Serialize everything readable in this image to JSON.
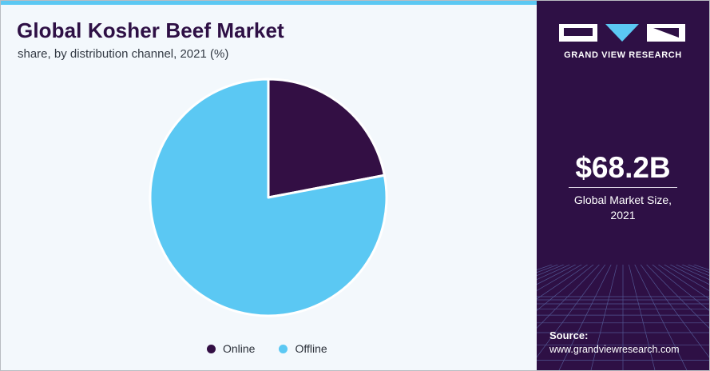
{
  "header": {
    "title": "Global Kosher Beef Market",
    "subtitle": "share, by distribution channel, 2021 (%)"
  },
  "chart_data": {
    "type": "pie",
    "title": "Global Kosher Beef Market",
    "subtitle": "share, by distribution channel, 2021 (%)",
    "categories": [
      "Online",
      "Offline"
    ],
    "values": [
      22,
      78
    ],
    "colors": [
      "#330f44",
      "#5bc8f3"
    ],
    "start_angle_deg": 0,
    "legend_position": "bottom"
  },
  "legend": {
    "items": [
      {
        "label": "Online",
        "color": "#330f44"
      },
      {
        "label": "Offline",
        "color": "#5bc8f3"
      }
    ]
  },
  "panel": {
    "brand": "GRAND VIEW RESEARCH",
    "stat_value": "$68.2B",
    "stat_label_line1": "Global Market Size,",
    "stat_label_line2": "2021",
    "source_title": "Source:",
    "source_url": "www.grandviewresearch.com",
    "background_color": "#2e1045",
    "accent_color": "#5bc8f3"
  },
  "icons": {
    "logo": "grand-view-research-logo-icon"
  }
}
